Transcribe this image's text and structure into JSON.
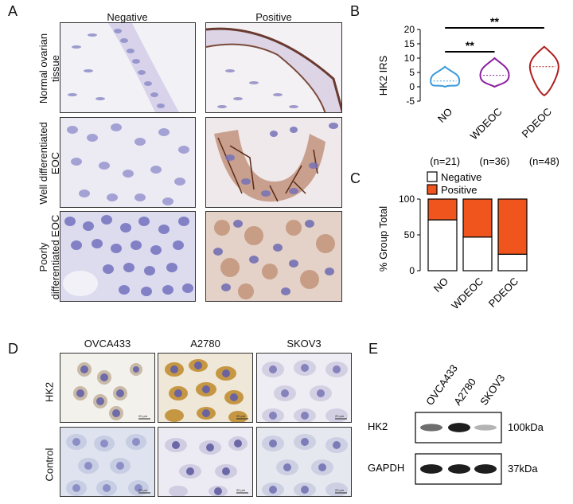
{
  "panels": {
    "A": {
      "letter": "A",
      "col_headers": [
        "Negative",
        "Positive"
      ],
      "row_labels": [
        [
          "Normal ovarian",
          "tissue"
        ],
        [
          "Well differentiated",
          "EOC"
        ],
        [
          "Poorly",
          "differentiated EOC"
        ]
      ]
    },
    "B": {
      "letter": "B"
    },
    "C": {
      "letter": "C"
    },
    "D": {
      "letter": "D",
      "col_headers": [
        "OVCA433",
        "A2780",
        "SKOV3"
      ],
      "row_labels": [
        "HK2",
        "Control"
      ],
      "scale_text": "20 μm"
    },
    "E": {
      "letter": "E",
      "lanes": [
        "OVCA433",
        "A2780",
        "SKOV3"
      ],
      "rows": [
        {
          "label": "HK2",
          "size": "100kDa",
          "intensity": [
            0.55,
            0.95,
            0.2
          ]
        },
        {
          "label": "GAPDH",
          "size": "37kDa",
          "intensity": [
            0.95,
            0.95,
            0.95
          ]
        }
      ]
    }
  },
  "chart_data": [
    {
      "type": "violin",
      "panel": "B",
      "ylabel": "HK2  IRS",
      "ylim": [
        -5,
        20
      ],
      "yticks": [
        -5,
        0,
        5,
        10,
        15,
        20
      ],
      "categories": [
        "NO",
        "WDEOC",
        "PDEOC"
      ],
      "counts": [
        "(n=21)",
        "(n=36)",
        "(n=48)"
      ],
      "colors": [
        "#3a9ad9",
        "#8a1fa0",
        "#b01e1e"
      ],
      "ranges": [
        [
          0,
          7
        ],
        [
          0,
          10
        ],
        [
          -3,
          14
        ]
      ],
      "medians": [
        2,
        4,
        7
      ],
      "significance": [
        {
          "from": "NO",
          "to": "WDEOC",
          "label": "**"
        },
        {
          "from": "NO",
          "to": "PDEOC",
          "label": "**"
        }
      ]
    },
    {
      "type": "bar",
      "stacked": true,
      "panel": "C",
      "ylabel": "% Group Total",
      "ylim": [
        0,
        100
      ],
      "yticks": [
        0,
        50,
        100
      ],
      "categories": [
        "NO",
        "WDEOC",
        "PDEOC"
      ],
      "series": [
        {
          "name": "Negative",
          "values": [
            71,
            47,
            23
          ],
          "color": "#ffffff"
        },
        {
          "name": "Positive",
          "values": [
            29,
            53,
            77
          ],
          "color": "#f0551e"
        }
      ]
    }
  ]
}
